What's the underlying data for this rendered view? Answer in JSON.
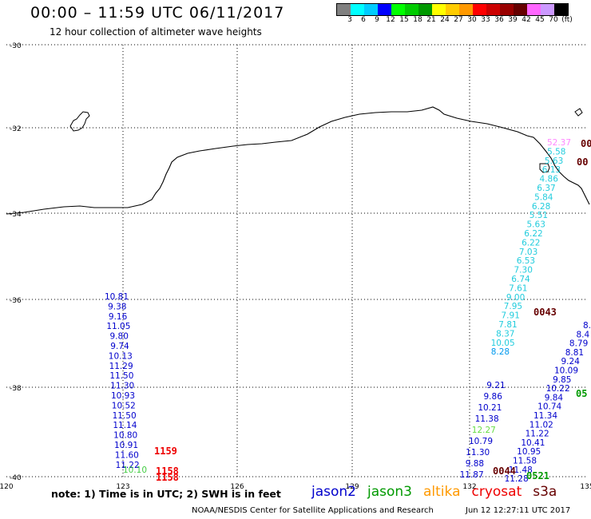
{
  "header": {
    "title": "00:00 – 11:59 UTC 06/11/2017",
    "subtitle": "12 hour collection of altimeter wave heights"
  },
  "colorbar": {
    "colors": [
      "#808080",
      "#00ffff",
      "#00ccff",
      "#0000ff",
      "#00ff00",
      "#00cc00",
      "#009900",
      "#ffff00",
      "#ffcc00",
      "#ff9900",
      "#ff0000",
      "#cc0000",
      "#990000",
      "#660000",
      "#ff66ff",
      "#cc99ff",
      "#000000"
    ],
    "labels": [
      "3",
      "6",
      "9",
      "12",
      "15",
      "18",
      "21",
      "24",
      "27",
      "30",
      "33",
      "36",
      "39",
      "42",
      "45",
      "70",
      "(ft)"
    ]
  },
  "axes": {
    "lat_ticks": [
      "-30",
      "-32",
      "-34",
      "-36",
      "-38",
      "-40"
    ],
    "lon_ticks": [
      "120",
      "123",
      "126",
      "129",
      "132",
      "135"
    ]
  },
  "satellite_colors": {
    "jason2": "#0000cc",
    "jason3": "#009900",
    "altika": "#ff9900",
    "cryosat": "#ee0000",
    "s3a": "#660000"
  },
  "tracks": {
    "west": {
      "values": [
        "10.81",
        "9.38",
        "9.16",
        "11.05",
        "9.80",
        "9.74",
        "10.13",
        "11.29",
        "11.50",
        "11.30",
        "10.93",
        "10.52",
        "11.50",
        "11.14",
        "10.80",
        "10.91",
        "11.60",
        "11.22"
      ],
      "extra": "10.10",
      "times": [
        "1159",
        "1158",
        "1158"
      ]
    },
    "east_cyan": {
      "values": [
        "52.37",
        "5.58",
        "5.63",
        "6.13",
        "4.86",
        "6.37",
        "5.84",
        "6.28",
        "5.51",
        "5.63",
        "6.22",
        "6.22",
        "7.03",
        "6.53",
        "7.30",
        "6.74",
        "7.61",
        "9.00",
        "7.95",
        "7.91",
        "7.81",
        "8.37",
        "10.05",
        "8.28"
      ]
    },
    "east_blue": {
      "values": [
        "9.21",
        "9.86",
        "10.21",
        "11.38",
        "12.27",
        "10.79",
        "11.30",
        "9.88",
        "11.87"
      ]
    },
    "east_far": {
      "values": [
        "8.",
        "8.4",
        "8.79",
        "8.81",
        "9.24",
        "10.09",
        "9.85",
        "10.22",
        "9.84",
        "10.74",
        "11.34",
        "11.02",
        "11.22",
        "10.41",
        "10.95",
        "11.58",
        "11.48",
        "11.28"
      ]
    },
    "time_labels": [
      "00",
      "00",
      "0043",
      "0044",
      "0521",
      "05"
    ]
  },
  "footer": {
    "note": "note: 1) Time is in UTC; 2) SWH is in feet",
    "legend": [
      "jason2",
      "jason3",
      "altika",
      "cryosat",
      "s3a"
    ],
    "credit": "NOAA/NESDIS Center for Satellite Applications and Research",
    "timestamp": "Jun 12 12:27:11 UTC 2017"
  }
}
